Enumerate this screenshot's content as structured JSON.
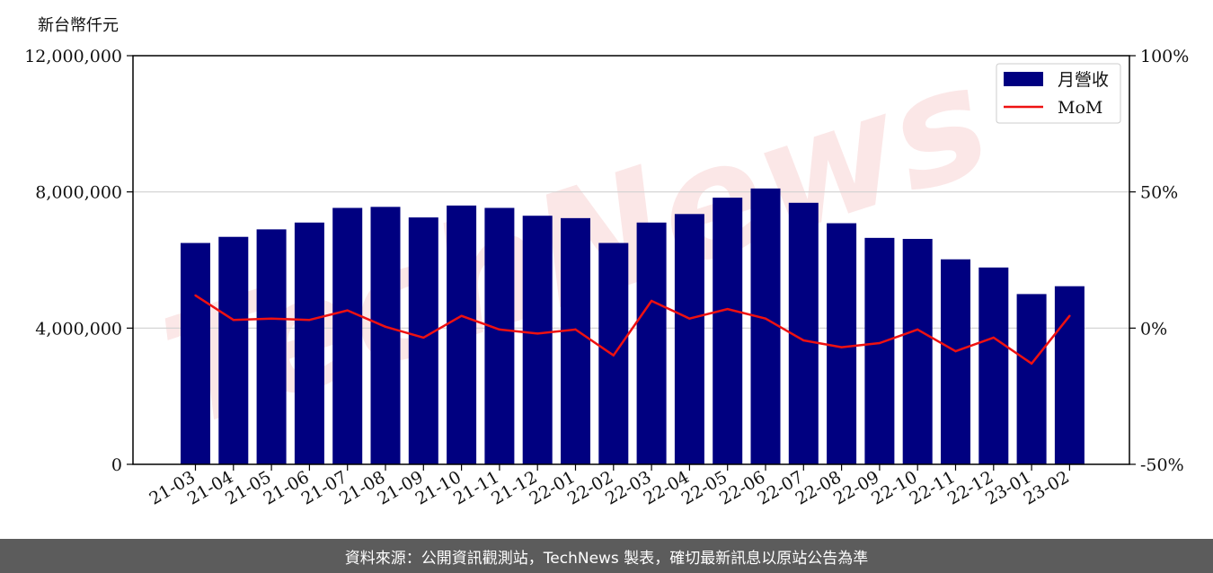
{
  "unit_label": "新台幣仟元",
  "footer_text": "資料來源：公開資訊觀測站，TechNews 製表，確切最新訊息以原站公告為準",
  "watermark_text": "TechNews",
  "colors": {
    "bar": "#000080",
    "line": "#ee1111",
    "grid": "#d0d0d0",
    "watermark": "#fbe3e3"
  },
  "chart_data": {
    "type": "bar",
    "title": "",
    "xlabel": "",
    "ylabel": "新台幣仟元",
    "ylim": [
      0,
      12000000
    ],
    "y2lim": [
      -50,
      100
    ],
    "yticks": [
      "0",
      "4,000,000",
      "8,000,000",
      "12,000,000"
    ],
    "y2ticks": [
      "-50%",
      "0%",
      "50%",
      "100%"
    ],
    "grid": "horizontal",
    "legend_position": "top-right",
    "categories": [
      "21-03",
      "21-04",
      "21-05",
      "21-06",
      "21-07",
      "21-08",
      "21-09",
      "21-10",
      "21-11",
      "21-12",
      "22-01",
      "22-02",
      "22-03",
      "22-04",
      "22-05",
      "22-06",
      "22-07",
      "22-08",
      "22-09",
      "22-10",
      "22-11",
      "22-12",
      "23-01",
      "23-02"
    ],
    "series": [
      {
        "name": "月營收",
        "type": "bar",
        "axis": "left",
        "values": [
          6500000,
          6680000,
          6900000,
          7100000,
          7530000,
          7560000,
          7250000,
          7600000,
          7530000,
          7300000,
          7230000,
          6500000,
          7100000,
          7350000,
          7830000,
          8100000,
          7680000,
          7080000,
          6650000,
          6620000,
          6020000,
          5780000,
          5000000,
          5230000
        ]
      },
      {
        "name": "MoM",
        "type": "line",
        "axis": "right",
        "values": [
          12,
          3,
          3.5,
          3,
          6.5,
          0.5,
          -3.5,
          4.5,
          -0.5,
          -2,
          -0.5,
          -10,
          10,
          3.5,
          7,
          3.5,
          -4.5,
          -7,
          -5.5,
          -0.5,
          -8.5,
          -3.5,
          -13,
          4.5
        ]
      }
    ]
  }
}
